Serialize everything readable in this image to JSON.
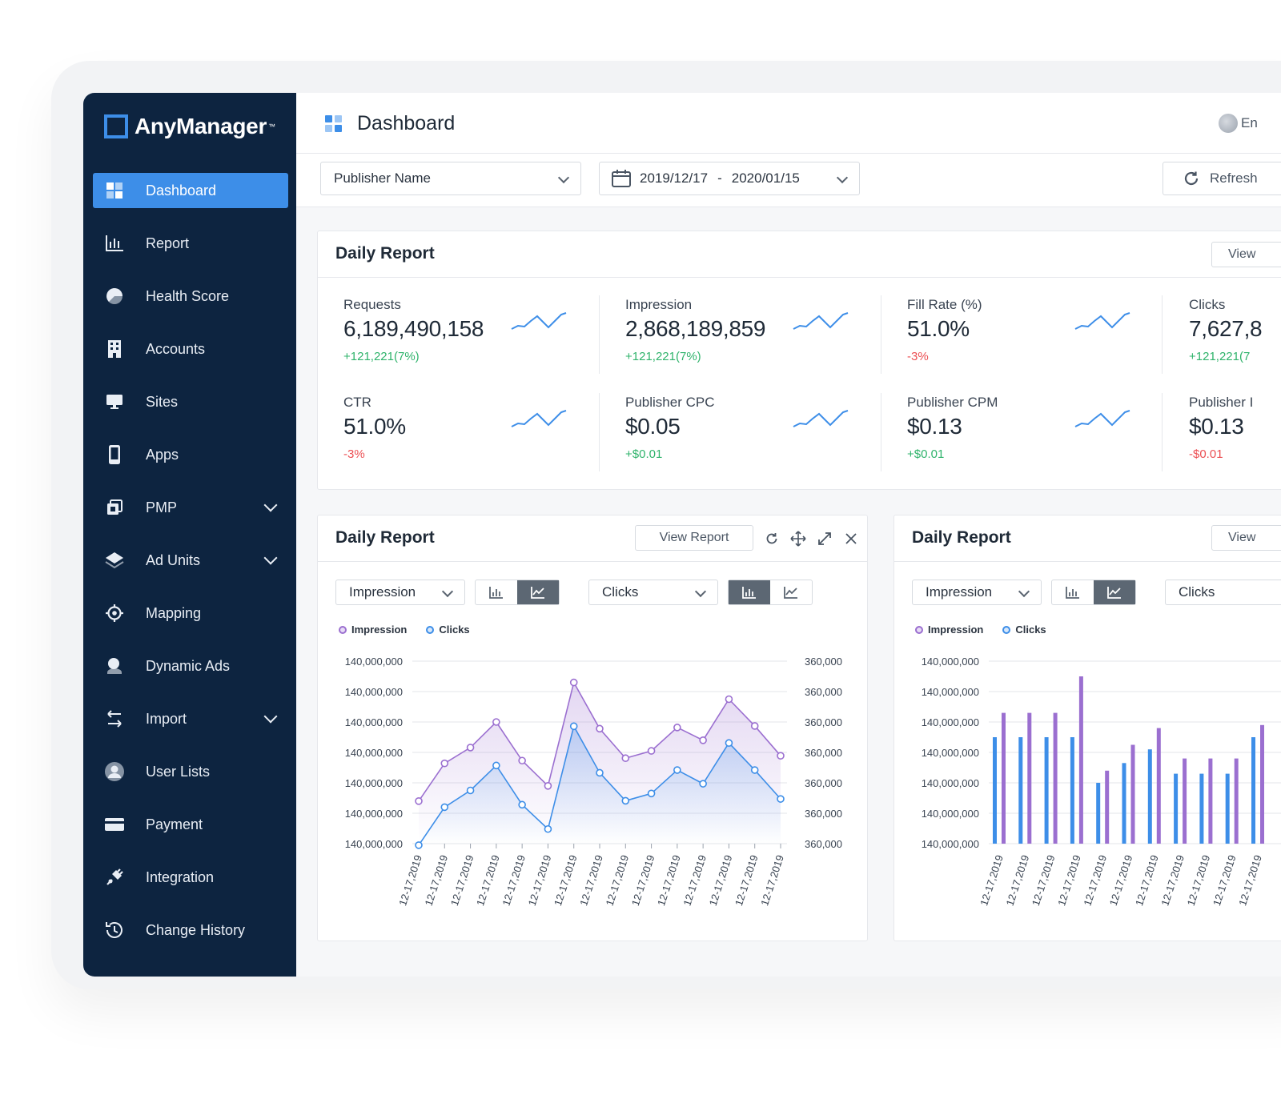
{
  "app": {
    "name": "AnyManager",
    "tm": "™"
  },
  "sidebar": {
    "items": [
      {
        "label": "Dashboard",
        "icon": "dashboard-icon",
        "active": true
      },
      {
        "label": "Report",
        "icon": "bar-chart-icon"
      },
      {
        "label": "Health Score",
        "icon": "pie-chart-icon"
      },
      {
        "label": "Accounts",
        "icon": "building-icon"
      },
      {
        "label": "Sites",
        "icon": "monitor-icon"
      },
      {
        "label": "Apps",
        "icon": "phone-icon"
      },
      {
        "label": "PMP",
        "icon": "pmp-icon",
        "expandable": true
      },
      {
        "label": "Ad Units",
        "icon": "layers-icon",
        "expandable": true
      },
      {
        "label": "Mapping",
        "icon": "target-icon"
      },
      {
        "label": "Dynamic Ads",
        "icon": "dynamic-ads-icon"
      },
      {
        "label": "Import",
        "icon": "import-icon",
        "expandable": true
      },
      {
        "label": "User Lists",
        "icon": "user-icon"
      },
      {
        "label": "Payment",
        "icon": "card-icon"
      },
      {
        "label": "Integration",
        "icon": "plug-icon"
      },
      {
        "label": "Change History",
        "icon": "history-icon"
      }
    ]
  },
  "header": {
    "title": "Dashboard",
    "user_partial": "En"
  },
  "filters": {
    "publisher": "Publisher Name",
    "date_start": "2019/12/17",
    "date_sep": "-",
    "date_end": "2020/01/15",
    "refresh": "Refresh"
  },
  "summary": {
    "title": "Daily Report",
    "view_btn": "View",
    "metrics": [
      {
        "label": "Requests",
        "value": "6,189,490,158",
        "change": "+121,221(7%)",
        "trend": "up"
      },
      {
        "label": "Impression",
        "value": "2,868,189,859",
        "change": "+121,221(7%)",
        "trend": "up"
      },
      {
        "label": "Fill Rate (%)",
        "value": "51.0%",
        "change": "-3%",
        "trend": "down"
      },
      {
        "label": "Clicks",
        "value": "7,627,8",
        "change": "+121,221(7",
        "trend": "up"
      },
      {
        "label": "CTR",
        "value": "51.0%",
        "change": "-3%",
        "trend": "down"
      },
      {
        "label": "Publisher CPC",
        "value": "$0.05",
        "change": "+$0.01",
        "trend": "up"
      },
      {
        "label": "Publisher CPM",
        "value": "$0.13",
        "change": "+$0.01",
        "trend": "up"
      },
      {
        "label": "Publisher I",
        "value": "$0.13",
        "change": "-$0.01",
        "trend": "down"
      }
    ]
  },
  "colors": {
    "impression": "#9b6fd0",
    "clicks": "#3d8ee8",
    "accent": "#3d8ee8",
    "sidebar": "#0d2440",
    "up": "#2fb36b",
    "down": "#ec4f53"
  },
  "panels": [
    {
      "title": "Daily Report",
      "view_btn": "View Report",
      "left_select": "Impression",
      "right_select": "Clicks",
      "legend": [
        "Impression",
        "Clicks"
      ]
    },
    {
      "title": "Daily Report",
      "view_btn": "View",
      "left_select": "Impression",
      "right_select": "Clicks",
      "legend": [
        "Impression",
        "Clicks"
      ]
    }
  ],
  "chart_data": [
    {
      "type": "line",
      "categories": [
        "12-17,2019",
        "12-17,2019",
        "12-17,2019",
        "12-17,2019",
        "12-17,2019",
        "12-17,2019",
        "12-17,2019",
        "12-17,2019",
        "12-17,2019",
        "12-17,2019",
        "12-17,2019",
        "12-17,2019",
        "12-17,2019",
        "12-17,2019",
        "12-17,2019"
      ],
      "y_left_ticks": [
        "140,000,000",
        "140,000,000",
        "140,000,000",
        "140,000,000",
        "140,000,000",
        "140,000,000",
        "140,000,000"
      ],
      "y_right_ticks": [
        "360,000",
        "360,000",
        "360,000",
        "360,000",
        "360,000",
        "360,000",
        "360,000"
      ],
      "ylim": [
        0,
        6
      ],
      "series": [
        {
          "name": "Impression",
          "values": [
            1.4,
            2.64,
            3.16,
            4.0,
            2.73,
            1.9,
            5.3,
            3.78,
            2.81,
            3.05,
            3.82,
            3.4,
            4.75,
            3.87,
            2.89
          ]
        },
        {
          "name": "Clicks",
          "values": [
            -0.05,
            1.2,
            1.75,
            2.57,
            1.28,
            0.48,
            3.86,
            2.33,
            1.41,
            1.65,
            2.42,
            1.97,
            3.31,
            2.42,
            1.47
          ]
        }
      ],
      "legend": "top-left",
      "grid": true
    },
    {
      "type": "bar",
      "categories": [
        "12-17,2019",
        "12-17,2019",
        "12-17,2019",
        "12-17,2019",
        "12-17,2019",
        "12-17,2019",
        "12-17,2019",
        "12-17,2019",
        "12-17,2019",
        "12-17,2019",
        "12-17,2019"
      ],
      "y_left_ticks": [
        "140,000,000",
        "140,000,000",
        "140,000,000",
        "140,000,000",
        "140,000,000",
        "140,000,000",
        "140,000,000"
      ],
      "ylim": [
        0,
        6
      ],
      "series": [
        {
          "name": "Clicks",
          "values": [
            3.5,
            3.5,
            3.5,
            3.5,
            2.0,
            2.65,
            3.1,
            2.3,
            2.3,
            2.3,
            3.5
          ]
        },
        {
          "name": "Impression",
          "values": [
            4.3,
            4.3,
            4.3,
            5.5,
            2.4,
            3.25,
            3.8,
            2.8,
            2.8,
            2.8,
            3.9
          ]
        }
      ],
      "legend": "top-left",
      "grid": true
    }
  ]
}
